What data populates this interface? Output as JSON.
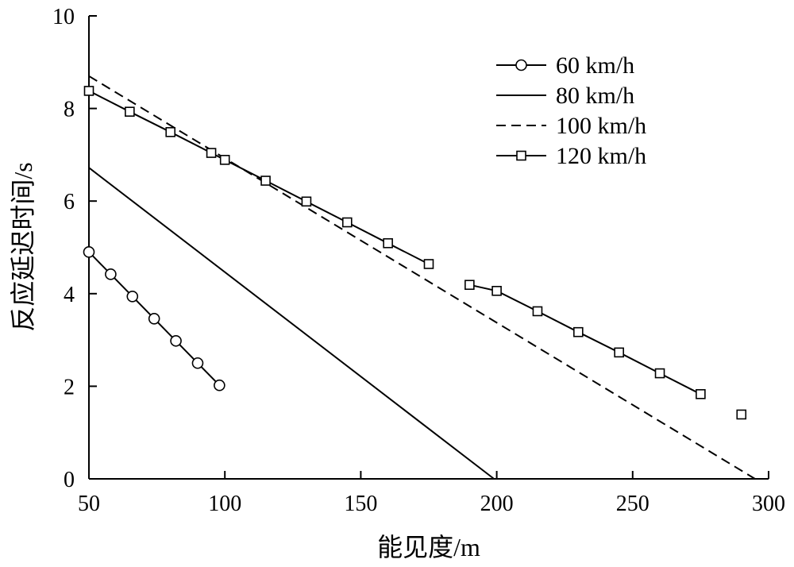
{
  "chart_data": {
    "type": "line",
    "xlabel": "能见度/m",
    "ylabel": "反应延迟时间/s",
    "xlim": [
      50,
      300
    ],
    "ylim": [
      0,
      10
    ],
    "xticks": [
      "50",
      "100",
      "150",
      "200",
      "250",
      "300"
    ],
    "yticks": [
      "0",
      "2",
      "4",
      "6",
      "8",
      "10"
    ],
    "grid": false,
    "legend_position": "top-right",
    "series": [
      {
        "name": "60 km/h",
        "line": "solid",
        "marker": "circle",
        "x": [
          50,
          58,
          66,
          74,
          82,
          90,
          98
        ],
        "y": [
          4.9,
          4.42,
          3.94,
          3.46,
          2.98,
          2.5,
          2.02
        ]
      },
      {
        "name": "80 km/h",
        "line": "solid",
        "marker": "none",
        "x": [
          50,
          199
        ],
        "y": [
          6.72,
          0
        ]
      },
      {
        "name": "100 km/h",
        "line": "dashed",
        "marker": "none",
        "x": [
          50,
          295
        ],
        "y": [
          8.7,
          0
        ]
      },
      {
        "name": "120 km/h",
        "line": "solid",
        "marker": "square",
        "segments": [
          [
            0,
            9
          ],
          [
            10,
            16
          ]
        ],
        "x": [
          50,
          65,
          80,
          95,
          100,
          115,
          130,
          145,
          160,
          175,
          190,
          200,
          215,
          230,
          245,
          260,
          275,
          290
        ],
        "y": [
          8.38,
          7.93,
          7.49,
          7.04,
          6.89,
          6.44,
          5.99,
          5.54,
          5.09,
          4.64,
          4.19,
          4.06,
          3.62,
          3.17,
          2.73,
          2.28,
          1.83,
          1.39
        ]
      }
    ]
  }
}
